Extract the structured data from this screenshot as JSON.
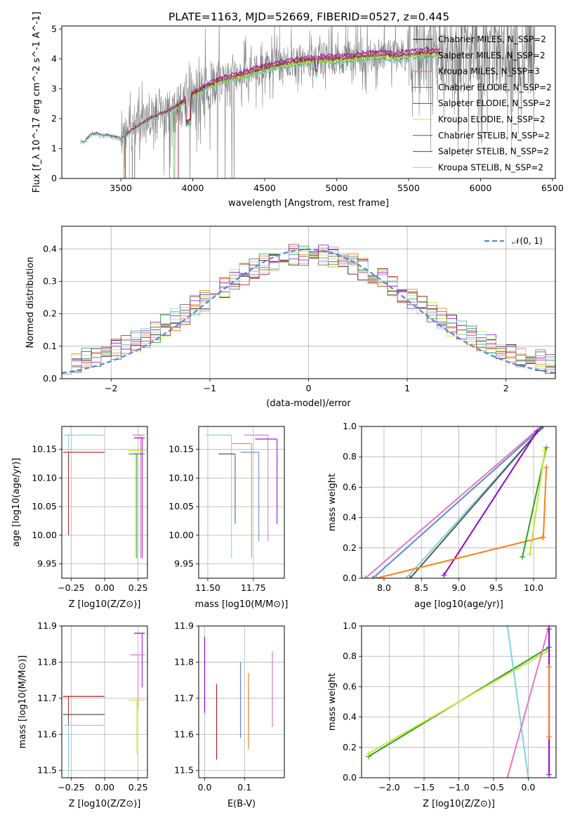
{
  "title": "PLATE=1163, MJD=52669, FIBERID=0527, z=0.445",
  "colors": {
    "ChabMILES": "#000000",
    "SalpMILES": "#e377c2",
    "KroupaMILES": "#ff7f0e",
    "ChabELODIE": "#2ca02c",
    "SalpELODIE": "#9400d3",
    "KroupaELODIE": "#c8e632",
    "ChabSTELIB": "#555555",
    "SalpSTELIB": "#b22222",
    "KroupaSTELIB": "#7fd3e3",
    "gauss": "#5b87d6",
    "data": "#808080"
  },
  "panels": {
    "spectrum": {
      "xlabel": "wavelength [Angstrom, rest frame]",
      "ylabel": "Flux [f_λ 10^-17 erg cm^-2 s^-1 A^-1]",
      "xticks": [
        "3500",
        "4000",
        "4500",
        "5000",
        "5500",
        "6000",
        "6500"
      ],
      "yticks": [
        "0",
        "1",
        "2",
        "3",
        "4",
        "5"
      ],
      "legend": [
        "Chabrier MILES, N_SSP=2",
        "Salpeter MILES, N_SSP=2",
        "Kroupa MILES, N_SSP=3",
        "Chabrier ELODIE, N_SSP=2",
        "Salpeter ELODIE, N_SSP=2",
        "Kroupa ELODIE, N_SSP=2",
        "Chabrier STELIB, N_SSP=2",
        "Salpeter STELIB, N_SSP=2",
        "Kroupa STELIB, N_SSP=2"
      ]
    },
    "residuals": {
      "xlabel": "(data-model)/error",
      "ylabel": "Normed distribution",
      "xticks": [
        "−2",
        "−1",
        "0",
        "1",
        "2"
      ],
      "yticks": [
        "0.0",
        "0.1",
        "0.2",
        "0.3",
        "0.4"
      ],
      "legend": "𝒩(0, 1)"
    },
    "age_vs_z": {
      "xlabel": "Z [log10(Z/Z⊙)]",
      "ylabel": "age  [log10(age/yr)]",
      "xticks": [
        "−0.25",
        "0.00",
        "0.25"
      ],
      "yticks": [
        "9.95",
        "10.00",
        "10.05",
        "10.10",
        "10.15"
      ]
    },
    "age_vs_mass": {
      "xlabel": "mass [log10(M/M⊙)]",
      "xticks": [
        "11.50",
        "11.75"
      ],
      "yticks": [
        "9.95",
        "10.00",
        "10.05",
        "10.10",
        "10.15"
      ]
    },
    "weight_vs_age": {
      "xlabel": "age  [log10(age/yr)]",
      "ylabel": "mass weight",
      "xticks": [
        "8.0",
        "8.5",
        "9.0",
        "9.5",
        "10.0"
      ],
      "yticks": [
        "0.0",
        "0.2",
        "0.4",
        "0.6",
        "0.8",
        "1.0"
      ]
    },
    "mass_vs_z": {
      "xlabel": "Z [log10(Z/Z⊙)]",
      "ylabel": "mass [log10(M/M⊙)]",
      "xticks": [
        "−0.25",
        "0.00",
        "0.25"
      ],
      "yticks": [
        "11.5",
        "11.6",
        "11.7",
        "11.8",
        "11.9"
      ]
    },
    "mass_vs_ebv": {
      "xlabel": "E(B-V)",
      "xticks": [
        "0.0",
        "0.1"
      ],
      "yticks": [
        "11.5",
        "11.6",
        "11.7",
        "11.8",
        "11.9"
      ]
    },
    "weight_vs_z": {
      "xlabel": "Z [log10(Z/Z⊙)]",
      "ylabel": "mass weight",
      "xticks": [
        "−2.0",
        "−1.5",
        "−1.0",
        "−0.5",
        "0.0"
      ],
      "yticks": [
        "0.0",
        "0.2",
        "0.4",
        "0.6",
        "0.8",
        "1.0"
      ]
    }
  },
  "chart_data": [
    {
      "type": "line",
      "title": "PLATE=1163, MJD=52669, FIBERID=0527, z=0.445",
      "xlabel": "wavelength [Angstrom, rest frame]",
      "ylabel": "Flux [f_λ 10^-17 erg cm^-2 s^-1 A^-1]",
      "xlim": [
        3090,
        6520
      ],
      "ylim": [
        0,
        5.1
      ],
      "grid": false,
      "legend_position": "top-right",
      "model_continuum": {
        "x": [
          3250,
          3300,
          3400,
          3500,
          3600,
          3700,
          3800,
          3900,
          4000,
          4100,
          4200,
          4300,
          4400,
          4500,
          4600,
          4700,
          4800,
          4900,
          5000,
          5100,
          5200,
          5300,
          5400,
          5500,
          5600,
          5700
        ],
        "y": [
          1.25,
          1.5,
          1.45,
          1.35,
          1.7,
          2.0,
          2.2,
          2.45,
          2.8,
          3.1,
          3.3,
          3.4,
          3.55,
          3.7,
          3.8,
          3.9,
          3.95,
          4.0,
          4.0,
          4.05,
          4.1,
          4.15,
          4.1,
          4.15,
          4.2,
          4.2
        ]
      },
      "series": [
        {
          "name": "Chabrier MILES, N_SSP=2",
          "color": "ChabMILES",
          "scale": 1.0
        },
        {
          "name": "Salpeter MILES, N_SSP=2",
          "color": "SalpMILES",
          "scale": 1.01
        },
        {
          "name": "Kroupa MILES, N_SSP=3",
          "color": "KroupaMILES",
          "scale": 0.99
        },
        {
          "name": "Chabrier ELODIE, N_SSP=2",
          "color": "ChabELODIE",
          "scale": 0.97
        },
        {
          "name": "Salpeter ELODIE, N_SSP=2",
          "color": "SalpELODIE",
          "scale": 1.03
        },
        {
          "name": "Kroupa ELODIE, N_SSP=2",
          "color": "KroupaELODIE",
          "scale": 0.98
        },
        {
          "name": "Chabrier STELIB, N_SSP=2",
          "color": "ChabSTELIB",
          "scale": 1.0
        },
        {
          "name": "Salpeter STELIB, N_SSP=2",
          "color": "SalpSTELIB",
          "scale": 1.02
        },
        {
          "name": "Kroupa STELIB, N_SSP=2",
          "color": "KroupaSTELIB",
          "scale": 0.96
        }
      ]
    },
    {
      "type": "line",
      "xlabel": "(data-model)/error",
      "ylabel": "Normed distribution",
      "xlim": [
        -2.5,
        2.5
      ],
      "ylim": [
        0,
        0.47
      ],
      "grid": true,
      "legend_position": "top-right",
      "gaussian": {
        "name": "𝒩(0, 1)",
        "mean": 0,
        "sigma": 1
      },
      "histogram_bins": 50
    },
    {
      "type": "scatter",
      "xlabel": "Z [log10(Z/Z⊙)]",
      "ylabel": "age  [log10(age/yr)]",
      "xlim": [
        -0.32,
        0.32
      ],
      "ylim": [
        9.925,
        10.19
      ],
      "grid": true,
      "points": [
        {
          "color": "KroupaSTELIB",
          "x": -0.27,
          "y": 10.175
        },
        {
          "color": "SalpSTELIB",
          "x": -0.27,
          "y": 10.145
        },
        {
          "color": "SalpELODIE",
          "x": 0.28,
          "y": 10.17
        },
        {
          "color": "SalpMILES",
          "x": 0.27,
          "y": 10.175
        },
        {
          "color": "KroupaELODIE",
          "x": 0.23,
          "y": 10.148
        },
        {
          "color": "ChabELODIE",
          "x": 0.24,
          "y": 10.142
        }
      ]
    },
    {
      "type": "scatter",
      "xlabel": "mass [log10(M/M⊙)]",
      "xlim": [
        11.45,
        11.92
      ],
      "ylim": [
        9.925,
        10.19
      ],
      "grid": true,
      "points": [
        {
          "color": "KroupaSTELIB",
          "x": 11.63,
          "y": 10.175
        },
        {
          "color": "SalpMILES",
          "x": 11.83,
          "y": 10.175
        },
        {
          "color": "SalpELODIE",
          "x": 11.88,
          "y": 10.168
        },
        {
          "color": "KroupaMILES",
          "x": 11.74,
          "y": 10.16
        },
        {
          "color": "gauss",
          "x": 11.78,
          "y": 10.145
        },
        {
          "color": "ChabSTELIB",
          "x": 11.65,
          "y": 10.142
        }
      ]
    },
    {
      "type": "line",
      "xlabel": "age  [log10(age/yr)]",
      "ylabel": "mass weight",
      "xlim": [
        7.7,
        10.3
      ],
      "ylim": [
        0,
        1
      ],
      "grid": true,
      "series": [
        {
          "color": "SalpMILES",
          "x": [
            7.75,
            10.1
          ],
          "y": [
            0.0,
            1.0
          ]
        },
        {
          "color": "gauss",
          "x": [
            7.85,
            10.1
          ],
          "y": [
            0.0,
            0.99
          ]
        },
        {
          "color": "KroupaSTELIB",
          "x": [
            8.3,
            10.12
          ],
          "y": [
            0.0,
            1.0
          ]
        },
        {
          "color": "ChabSTELIB",
          "x": [
            8.35,
            10.12
          ],
          "y": [
            0.0,
            1.0
          ]
        },
        {
          "color": "SalpELODIE",
          "x": [
            8.8,
            10.05
          ],
          "y": [
            0.02,
            0.97
          ]
        },
        {
          "color": "KroupaMILES",
          "x": [
            7.9,
            10.12
          ],
          "y": [
            0.0,
            0.27
          ]
        },
        {
          "color": "ChabELODIE",
          "x": [
            9.85,
            10.17
          ],
          "y": [
            0.14,
            0.86
          ]
        },
        {
          "color": "KroupaELODIE",
          "x": [
            9.95,
            10.15
          ],
          "y": [
            0.16,
            0.84
          ]
        },
        {
          "color": "KroupaMILES",
          "x": [
            10.13,
            10.17
          ],
          "y": [
            0.27,
            0.73
          ]
        }
      ]
    },
    {
      "type": "scatter",
      "xlabel": "Z [log10(Z/Z⊙)]",
      "ylabel": "mass [log10(M/M⊙)]",
      "xlim": [
        -0.32,
        0.32
      ],
      "ylim": [
        11.48,
        11.9
      ],
      "grid": true,
      "points": [
        {
          "color": "SalpELODIE",
          "x": 0.28,
          "y": 11.88
        },
        {
          "color": "SalpMILES",
          "x": 0.25,
          "y": 11.82
        },
        {
          "color": "SalpSTELIB",
          "x": -0.27,
          "y": 11.705
        },
        {
          "color": "ChabSTELIB",
          "x": -0.27,
          "y": 11.655
        },
        {
          "color": "KroupaSTELIB",
          "x": -0.27,
          "y": 11.625
        },
        {
          "color": "KroupaELODIE",
          "x": 0.24,
          "y": 11.695
        }
      ]
    },
    {
      "type": "scatter",
      "xlabel": "E(B-V)",
      "xlim": [
        -0.015,
        0.2
      ],
      "ylim": [
        11.48,
        11.9
      ],
      "grid": true,
      "points": [
        {
          "color": "SalpELODIE",
          "x": 0.0,
          "y": 11.78
        },
        {
          "color": "SalpSTELIB",
          "x": 0.03,
          "y": 11.65
        },
        {
          "color": "gauss",
          "x": 0.09,
          "y": 11.71
        },
        {
          "color": "KroupaMILES",
          "x": 0.11,
          "y": 11.68
        },
        {
          "color": "SalpMILES",
          "x": 0.17,
          "y": 11.74
        }
      ]
    },
    {
      "type": "line",
      "xlabel": "Z [log10(Z/Z⊙)]",
      "ylabel": "mass weight",
      "xlim": [
        -2.4,
        0.4
      ],
      "ylim": [
        0,
        1
      ],
      "grid": true,
      "series": [
        {
          "color": "ChabELODIE",
          "x": [
            -2.3,
            0.3
          ],
          "y": [
            0.14,
            0.86
          ]
        },
        {
          "color": "KroupaELODIE",
          "x": [
            -2.3,
            0.3
          ],
          "y": [
            0.16,
            0.84
          ]
        },
        {
          "color": "KroupaSTELIB",
          "x": [
            -0.3,
            0.0
          ],
          "y": [
            1.0,
            0.0
          ]
        },
        {
          "color": "SalpMILES",
          "x": [
            -0.3,
            0.3
          ],
          "y": [
            0.0,
            1.0
          ]
        },
        {
          "color": "SalpELODIE",
          "x": [
            0.3,
            0.3
          ],
          "y": [
            0.02,
            0.98
          ]
        },
        {
          "color": "KroupaMILES",
          "x": [
            0.3,
            0.3
          ],
          "y": [
            0.27,
            0.73
          ]
        }
      ]
    }
  ]
}
